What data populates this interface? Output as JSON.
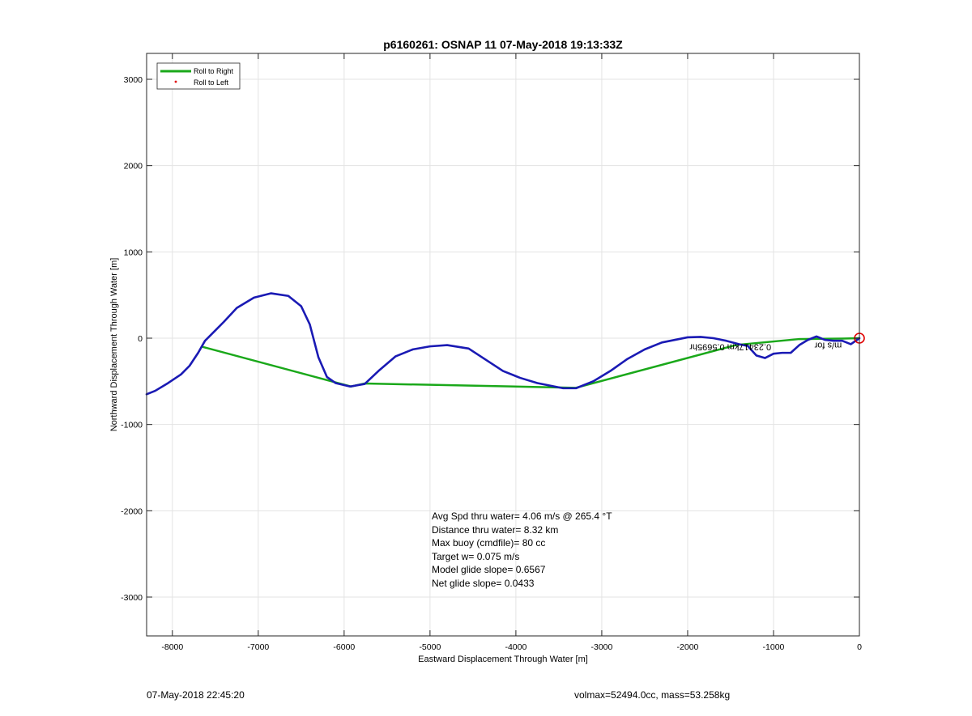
{
  "chart_data": {
    "type": "line",
    "title": "p6160261: OSNAP 11 07-May-2018 19:13:33Z",
    "xlabel": "Eastward Displacement Through Water [m]",
    "ylabel": "Northward Displacement Through Water [m]",
    "xlim": [
      -8300,
      0
    ],
    "ylim": [
      -3450,
      3300
    ],
    "xticks": [
      -8000,
      -7000,
      -6000,
      -5000,
      -4000,
      -3000,
      -2000,
      -1000,
      0
    ],
    "yticks": [
      -3000,
      -2000,
      -1000,
      0,
      1000,
      2000,
      3000
    ],
    "xtick_labels": [
      "-8000",
      "-7000",
      "-6000",
      "-5000",
      "-4000",
      "-3000",
      "-2000",
      "-1000",
      "0"
    ],
    "ytick_labels": [
      "-3000",
      "-2000",
      "-1000",
      "0",
      "1000",
      "2000",
      "3000"
    ],
    "grid": true,
    "legend_position": "top-left",
    "series": [
      {
        "name": "Roll to Right",
        "color": "#1aa81a",
        "x": [
          -7650,
          -5920,
          -5760,
          -3300,
          -1440,
          -700,
          -200,
          0
        ],
        "y": [
          -100,
          -560,
          -525,
          -575,
          -80,
          -10,
          -5,
          0
        ]
      },
      {
        "name": "Roll to Left",
        "color": "#e00000",
        "marker": "dot",
        "x": [],
        "y": []
      },
      {
        "name": "",
        "color": "#1a1ab4",
        "x": [
          -8300,
          -8200,
          -8050,
          -7900,
          -7800,
          -7700,
          -7620,
          -7500,
          -7400,
          -7250,
          -7050,
          -6850,
          -6650,
          -6500,
          -6400,
          -6300,
          -6200,
          -6100,
          -5930,
          -5760,
          -5600,
          -5400,
          -5200,
          -5000,
          -4800,
          -4550,
          -4350,
          -4150,
          -3950,
          -3750,
          -3450,
          -3300,
          -3100,
          -2900,
          -2700,
          -2500,
          -2300,
          -2000,
          -1850,
          -1700,
          -1550,
          -1400,
          -1300,
          -1200,
          -1100,
          -1000,
          -900,
          -800,
          -700,
          -600,
          -500,
          -400,
          -300,
          -200,
          -100,
          0
        ],
        "y": [
          -650,
          -610,
          -520,
          -420,
          -320,
          -170,
          -30,
          90,
          190,
          350,
          470,
          520,
          490,
          370,
          160,
          -220,
          -450,
          -520,
          -560,
          -530,
          -380,
          -210,
          -130,
          -95,
          -80,
          -120,
          -250,
          -380,
          -460,
          -520,
          -580,
          -580,
          -500,
          -380,
          -240,
          -130,
          -50,
          10,
          15,
          0,
          -30,
          -70,
          -90,
          -200,
          -230,
          -180,
          -170,
          -170,
          -80,
          -20,
          20,
          -20,
          -30,
          -30,
          -70,
          0
        ]
      }
    ],
    "end_marker": {
      "x": 0,
      "y": 0,
      "color": "#e00000"
    },
    "mirrored_annotation": {
      "text": "0.2341",
      "text_rest": "7km",
      "text_mid": "0.5695hr",
      "text_overlap": "m/s for",
      "x": -1970,
      "y": -70
    },
    "stats": [
      "Avg Spd thru water=  4.06 m/s @ 265.4 °T",
      "Distance thru water=  8.32 km",
      "Max buoy (cmdfile)= 80 cc",
      "Target w= 0.075 m/s",
      "Model glide slope= 0.6567",
      "Net glide slope= 0.0433"
    ]
  },
  "footer": {
    "timestamp": "07-May-2018 22:45:20",
    "volume_mass": "volmax=52494.0cc, mass=53.258kg"
  }
}
